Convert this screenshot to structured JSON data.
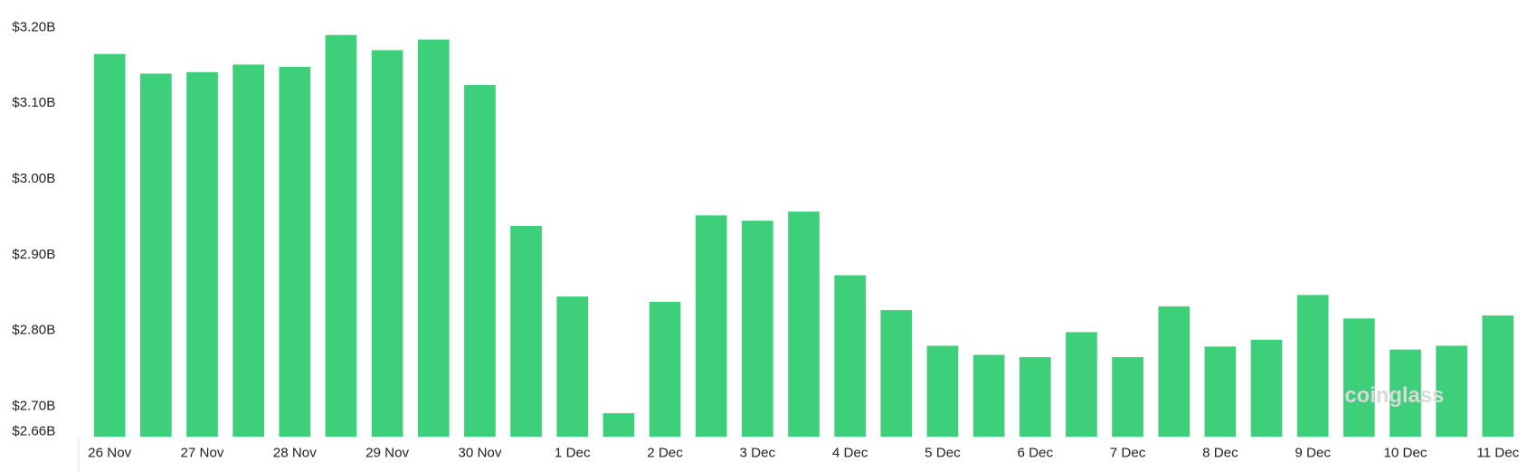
{
  "chart_data": {
    "type": "bar",
    "categories": [
      "26 Nov",
      null,
      "27 Nov",
      null,
      "28 Nov",
      null,
      "29 Nov",
      null,
      "30 Nov",
      null,
      "1 Dec",
      null,
      "2 Dec",
      null,
      "3 Dec",
      null,
      "4 Dec",
      null,
      "5 Dec",
      null,
      "6 Dec",
      null,
      "7 Dec",
      null,
      "8 Dec",
      null,
      "9 Dec",
      null,
      "10 Dec",
      null,
      "11 Dec"
    ],
    "values": [
      3.165,
      3.139,
      3.141,
      3.151,
      3.148,
      3.19,
      3.17,
      3.184,
      3.124,
      2.938,
      2.845,
      2.691,
      2.838,
      2.952,
      2.945,
      2.957,
      2.873,
      2.827,
      2.78,
      2.768,
      2.765,
      2.798,
      2.765,
      2.832,
      2.779,
      2.788,
      2.847,
      2.816,
      2.775,
      2.78,
      2.82
    ],
    "color": "#3ecf7a",
    "ylim": [
      2.66,
      3.2
    ],
    "yticks": [
      {
        "value": 2.66,
        "label": "$2.66B"
      },
      {
        "value": 2.7,
        "label": "$2.70B"
      },
      {
        "value": 2.8,
        "label": "$2.80B"
      },
      {
        "value": 2.9,
        "label": "$2.90B"
      },
      {
        "value": 3.0,
        "label": "$3.00B"
      },
      {
        "value": 3.1,
        "label": "$3.10B"
      },
      {
        "value": 3.2,
        "label": "$3.20B"
      }
    ],
    "watermark": "coinglass"
  }
}
